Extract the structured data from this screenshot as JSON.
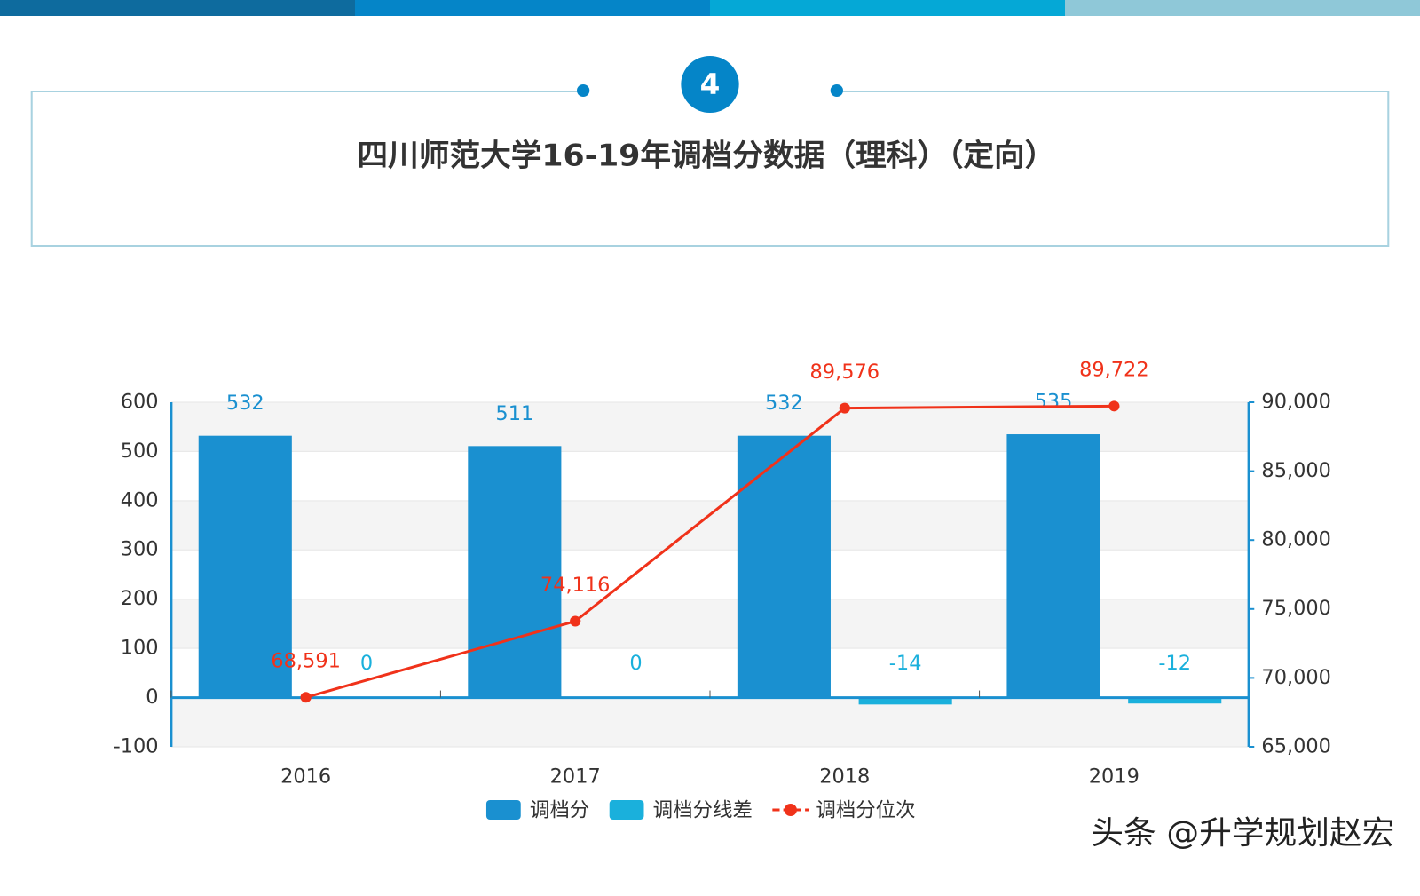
{
  "header": {
    "badge": "4",
    "title": "四川师范大学16-19年调档分数据（理科）（定向）"
  },
  "chart_data": {
    "type": "bar",
    "categories": [
      "2016",
      "2017",
      "2018",
      "2019"
    ],
    "series": [
      {
        "name": "调档分",
        "color": "#1a90d0",
        "type": "bar",
        "values": [
          532,
          511,
          532,
          535
        ]
      },
      {
        "name": "调档分线差",
        "color": "#1ab0dc",
        "type": "bar",
        "values": [
          0,
          0,
          -14,
          -12
        ]
      },
      {
        "name": "调档分位次",
        "color": "#f0321a",
        "type": "line",
        "axis": "y2",
        "values": [
          68591,
          74116,
          89576,
          89722
        ],
        "value_labels": [
          "68,591",
          "74,116",
          "89,576",
          "89,722"
        ]
      }
    ],
    "ylim": [
      -100,
      600
    ],
    "yticks": [
      -100,
      0,
      100,
      200,
      300,
      400,
      500,
      600
    ],
    "y2lim": [
      65000,
      90000
    ],
    "y2ticks": [
      {
        "value": 65000,
        "label": "65,000"
      },
      {
        "value": 70000,
        "label": "70,000"
      },
      {
        "value": 75000,
        "label": "75,000"
      },
      {
        "value": 80000,
        "label": "80,000"
      },
      {
        "value": 85000,
        "label": "85,000"
      },
      {
        "value": 90000,
        "label": "90,000"
      }
    ],
    "grid": true,
    "legend": "bottom"
  },
  "watermark": "头条 @升学规划赵宏"
}
